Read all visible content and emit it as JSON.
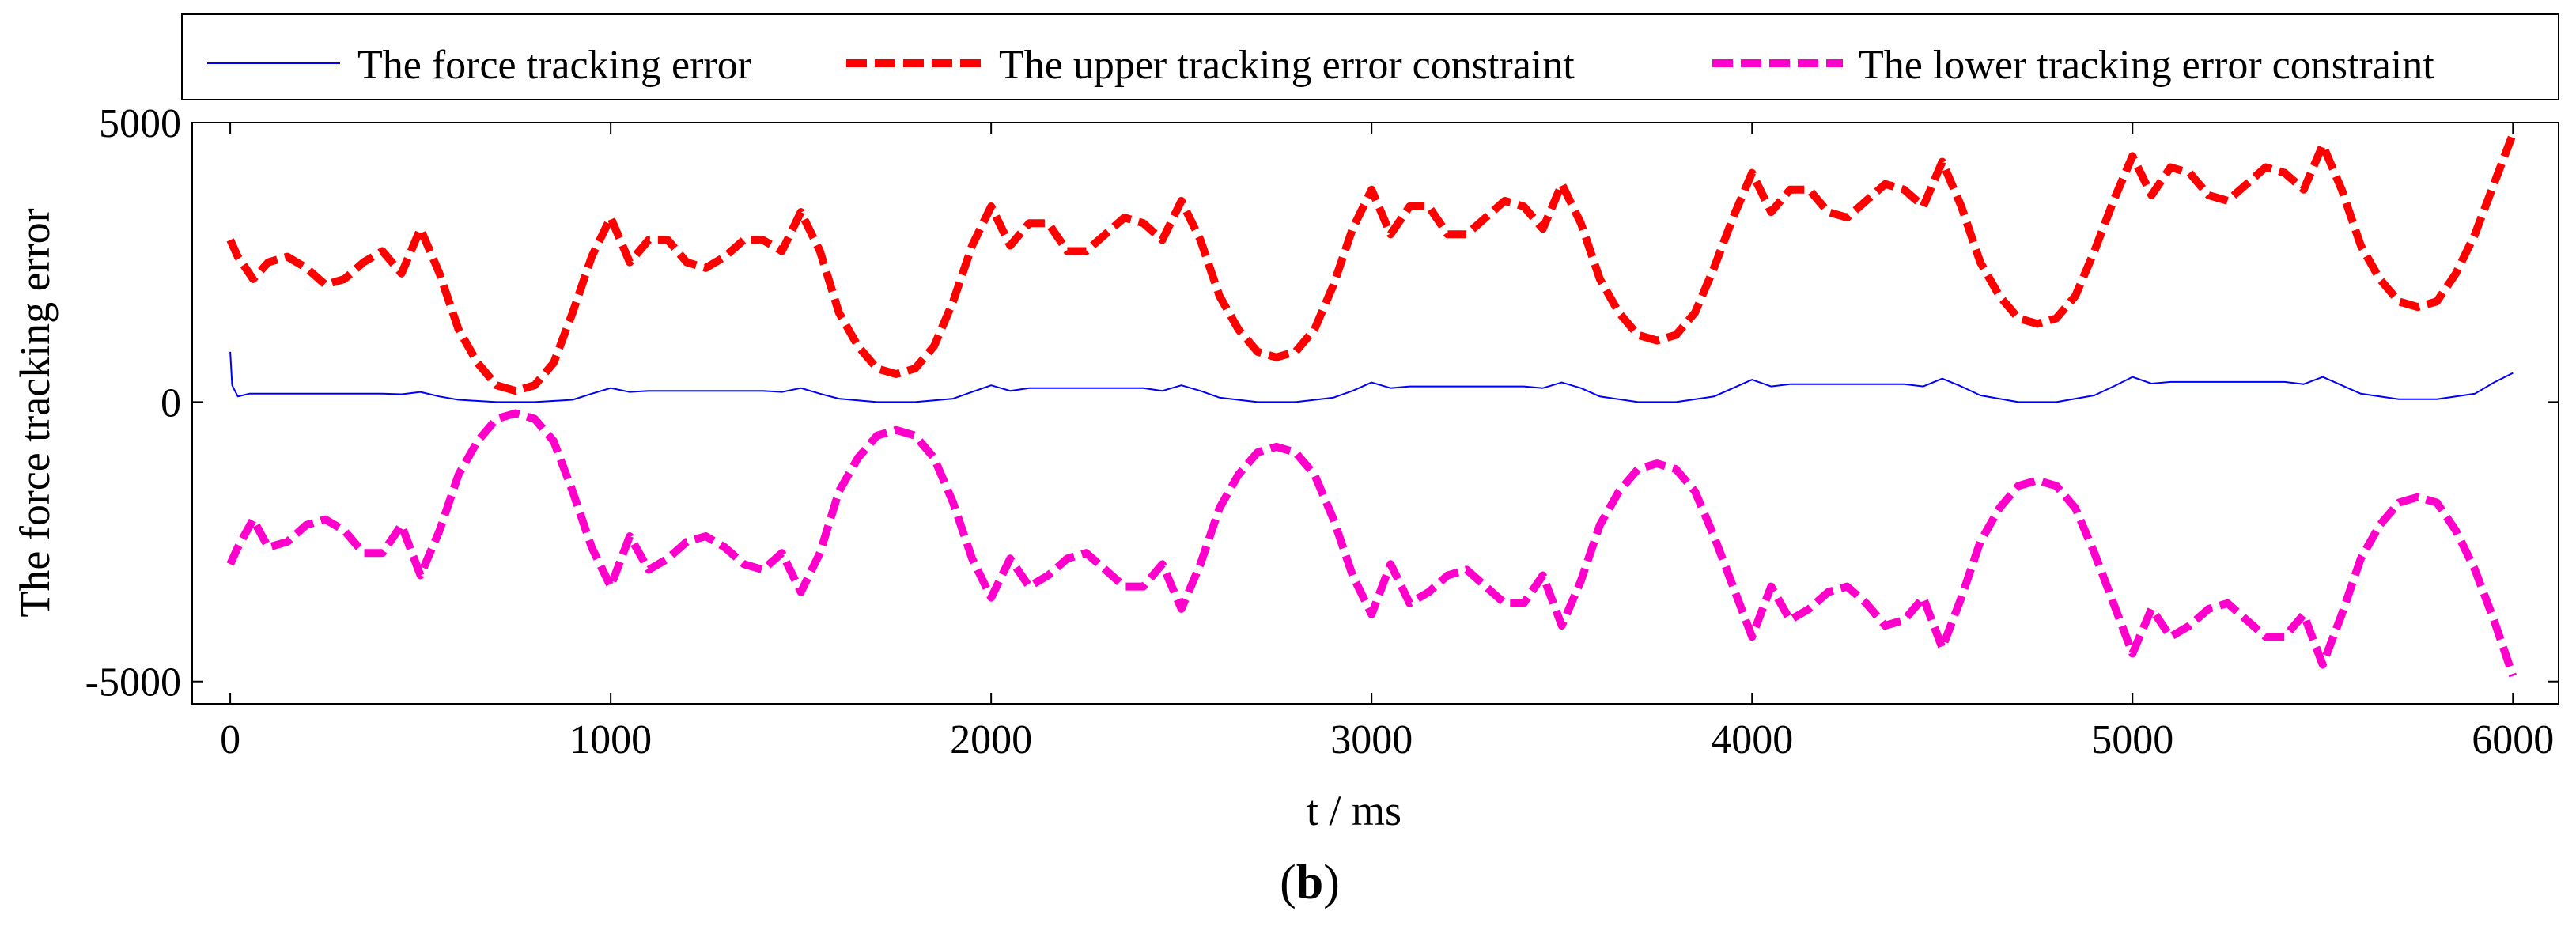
{
  "chart_data": {
    "type": "line",
    "title": "",
    "xlabel": "t / ms",
    "ylabel": "The force tracking error",
    "xlim": [
      -100,
      6120
    ],
    "ylim": [
      -5400,
      5000
    ],
    "xticks": [
      0,
      1000,
      2000,
      3000,
      4000,
      5000,
      6000
    ],
    "xtick_labels": [
      "0",
      "1000",
      "2000",
      "3000",
      "4000",
      "5000",
      "6000"
    ],
    "yticks": [
      -5000,
      0,
      5000
    ],
    "ytick_labels": [
      "-5000",
      "0",
      "5000"
    ],
    "grid": false,
    "legend_position": "top, outside, horizontal",
    "caption": {
      "open": "(",
      "letter": "b",
      "close": ")"
    },
    "series": [
      {
        "name": "The force tracking error",
        "color": "#0000ff",
        "style": "solid",
        "x": [
          0,
          5,
          20,
          50,
          100,
          200,
          300,
          400,
          450,
          500,
          550,
          600,
          700,
          750,
          800,
          900,
          950,
          1000,
          1050,
          1100,
          1200,
          1300,
          1400,
          1450,
          1500,
          1550,
          1600,
          1700,
          1750,
          1800,
          1900,
          1950,
          2000,
          2050,
          2100,
          2200,
          2300,
          2400,
          2450,
          2500,
          2550,
          2600,
          2700,
          2750,
          2800,
          2900,
          2950,
          3000,
          3050,
          3100,
          3200,
          3300,
          3400,
          3450,
          3500,
          3550,
          3600,
          3700,
          3750,
          3800,
          3900,
          3950,
          4000,
          4050,
          4100,
          4200,
          4300,
          4400,
          4450,
          4500,
          4550,
          4600,
          4700,
          4750,
          4800,
          4900,
          4950,
          5000,
          5050,
          5100,
          5200,
          5300,
          5400,
          5450,
          5500,
          5550,
          5600,
          5700,
          5750,
          5800,
          5900,
          5950,
          6000
        ],
        "values": [
          900,
          300,
          100,
          150,
          150,
          150,
          150,
          150,
          140,
          180,
          100,
          40,
          0,
          0,
          0,
          40,
          150,
          250,
          180,
          200,
          200,
          200,
          200,
          180,
          250,
          150,
          60,
          0,
          0,
          0,
          60,
          180,
          300,
          200,
          250,
          250,
          250,
          250,
          200,
          300,
          200,
          80,
          0,
          0,
          0,
          80,
          200,
          350,
          250,
          280,
          280,
          280,
          280,
          250,
          350,
          250,
          100,
          0,
          0,
          0,
          100,
          250,
          400,
          280,
          320,
          320,
          320,
          320,
          280,
          420,
          280,
          120,
          0,
          0,
          0,
          120,
          280,
          450,
          330,
          360,
          360,
          360,
          360,
          320,
          450,
          300,
          150,
          50,
          50,
          50,
          150,
          350,
          520
        ]
      },
      {
        "name": "The upper tracking error constraint",
        "color": "#ff0000",
        "style": "dashed",
        "x": [
          0,
          20,
          60,
          100,
          150,
          200,
          250,
          300,
          350,
          400,
          450,
          500,
          550,
          600,
          650,
          700,
          750,
          800,
          850,
          900,
          950,
          1000,
          1050,
          1100,
          1150,
          1200,
          1250,
          1300,
          1350,
          1400,
          1450,
          1500,
          1550,
          1600,
          1650,
          1700,
          1750,
          1800,
          1850,
          1900,
          1950,
          2000,
          2050,
          2100,
          2150,
          2200,
          2250,
          2300,
          2350,
          2400,
          2450,
          2500,
          2550,
          2600,
          2650,
          2700,
          2750,
          2800,
          2850,
          2900,
          2950,
          3000,
          3050,
          3100,
          3150,
          3200,
          3250,
          3300,
          3350,
          3400,
          3450,
          3500,
          3550,
          3600,
          3650,
          3700,
          3750,
          3800,
          3850,
          3900,
          3950,
          4000,
          4050,
          4100,
          4150,
          4200,
          4250,
          4300,
          4350,
          4400,
          4450,
          4500,
          4550,
          4600,
          4650,
          4700,
          4750,
          4800,
          4850,
          4900,
          4950,
          5000,
          5050,
          5100,
          5150,
          5200,
          5250,
          5300,
          5350,
          5400,
          5450,
          5500,
          5550,
          5600,
          5650,
          5700,
          5750,
          5800,
          5850,
          5900,
          5950,
          6000
        ],
        "values": [
          2900,
          2600,
          2200,
          2500,
          2600,
          2400,
          2100,
          2200,
          2500,
          2700,
          2300,
          3100,
          2300,
          1300,
          700,
          300,
          200,
          300,
          700,
          1600,
          2600,
          3300,
          2500,
          2900,
          2900,
          2500,
          2400,
          2600,
          2900,
          2900,
          2700,
          3400,
          2700,
          1600,
          1000,
          600,
          500,
          600,
          1000,
          1800,
          2800,
          3500,
          2800,
          3200,
          3200,
          2700,
          2700,
          3000,
          3300,
          3200,
          2900,
          3600,
          2900,
          1900,
          1300,
          900,
          800,
          900,
          1300,
          2100,
          3100,
          3800,
          3000,
          3500,
          3500,
          3000,
          3000,
          3300,
          3600,
          3500,
          3100,
          3900,
          3200,
          2200,
          1600,
          1200,
          1100,
          1200,
          1600,
          2400,
          3300,
          4100,
          3400,
          3800,
          3800,
          3400,
          3300,
          3600,
          3900,
          3800,
          3500,
          4300,
          3500,
          2500,
          1900,
          1500,
          1400,
          1500,
          1900,
          2700,
          3600,
          4400,
          3700,
          4200,
          4100,
          3700,
          3600,
          3900,
          4200,
          4100,
          3800,
          4600,
          3800,
          2800,
          2200,
          1800,
          1700,
          1800,
          2300,
          3000,
          3900,
          4800
        ]
      },
      {
        "name": "The lower tracking error constraint",
        "color": "#ff00cc",
        "style": "dashed",
        "x": [
          0,
          20,
          60,
          100,
          150,
          200,
          250,
          300,
          350,
          400,
          450,
          500,
          550,
          600,
          650,
          700,
          750,
          800,
          850,
          900,
          950,
          1000,
          1050,
          1100,
          1150,
          1200,
          1250,
          1300,
          1350,
          1400,
          1450,
          1500,
          1550,
          1600,
          1650,
          1700,
          1750,
          1800,
          1850,
          1900,
          1950,
          2000,
          2050,
          2100,
          2150,
          2200,
          2250,
          2300,
          2350,
          2400,
          2450,
          2500,
          2550,
          2600,
          2650,
          2700,
          2750,
          2800,
          2850,
          2900,
          2950,
          3000,
          3050,
          3100,
          3150,
          3200,
          3250,
          3300,
          3350,
          3400,
          3450,
          3500,
          3550,
          3600,
          3650,
          3700,
          3750,
          3800,
          3850,
          3900,
          3950,
          4000,
          4050,
          4100,
          4150,
          4200,
          4250,
          4300,
          4350,
          4400,
          4450,
          4500,
          4550,
          4600,
          4650,
          4700,
          4750,
          4800,
          4850,
          4900,
          4950,
          5000,
          5050,
          5100,
          5150,
          5200,
          5250,
          5300,
          5350,
          5400,
          5450,
          5500,
          5550,
          5600,
          5650,
          5700,
          5750,
          5800,
          5850,
          5900,
          5950,
          6000
        ],
        "values": [
          -2900,
          -2600,
          -2100,
          -2600,
          -2500,
          -2200,
          -2100,
          -2300,
          -2700,
          -2700,
          -2200,
          -3100,
          -2300,
          -1300,
          -700,
          -300,
          -200,
          -300,
          -700,
          -1600,
          -2600,
          -3300,
          -2400,
          -3000,
          -2800,
          -2500,
          -2400,
          -2600,
          -2900,
          -3000,
          -2700,
          -3400,
          -2700,
          -1600,
          -1000,
          -600,
          -500,
          -600,
          -1000,
          -1800,
          -2800,
          -3500,
          -2800,
          -3300,
          -3100,
          -2800,
          -2700,
          -3000,
          -3300,
          -3300,
          -2900,
          -3700,
          -2900,
          -1900,
          -1300,
          -900,
          -800,
          -900,
          -1300,
          -2100,
          -3100,
          -3800,
          -2900,
          -3600,
          -3400,
          -3100,
          -3000,
          -3300,
          -3600,
          -3600,
          -3100,
          -4000,
          -3200,
          -2200,
          -1600,
          -1200,
          -1100,
          -1200,
          -1600,
          -2400,
          -3300,
          -4200,
          -3300,
          -3900,
          -3700,
          -3400,
          -3300,
          -3600,
          -4000,
          -3900,
          -3500,
          -4400,
          -3500,
          -2500,
          -1900,
          -1500,
          -1400,
          -1500,
          -1900,
          -2700,
          -3600,
          -4500,
          -3700,
          -4200,
          -4000,
          -3700,
          -3600,
          -3900,
          -4200,
          -4200,
          -3800,
          -4700,
          -3800,
          -2800,
          -2200,
          -1800,
          -1700,
          -1800,
          -2300,
          -3000,
          -3900,
          -4900
        ]
      }
    ]
  }
}
